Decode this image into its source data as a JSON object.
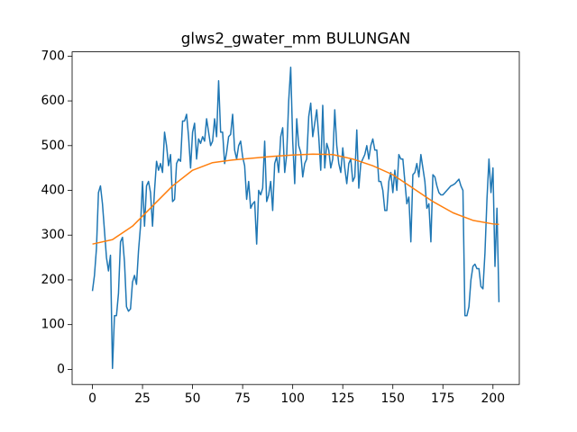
{
  "chart_data": {
    "type": "line",
    "title": "glws2_gwater_mm BULUNGAN",
    "xlim": [
      -10.15,
      213.15
    ],
    "xticks": [
      0,
      25,
      50,
      75,
      100,
      125,
      150,
      175,
      200
    ],
    "ylim": [
      -33.8,
      709.6
    ],
    "yticks": [
      0,
      100,
      200,
      300,
      400,
      500,
      600,
      700
    ],
    "series": [
      {
        "color": "#1f77b4",
        "values": [
          175,
          210,
          270,
          395,
          410,
          370,
          310,
          250,
          220,
          255,
          2,
          120,
          120,
          170,
          285,
          295,
          240,
          140,
          130,
          135,
          195,
          210,
          190,
          265,
          320,
          420,
          320,
          410,
          420,
          395,
          320,
          400,
          465,
          445,
          460,
          440,
          530,
          500,
          455,
          480,
          375,
          380,
          460,
          470,
          465,
          555,
          555,
          570,
          520,
          450,
          530,
          550,
          470,
          515,
          505,
          520,
          510,
          560,
          530,
          500,
          510,
          560,
          520,
          645,
          530,
          530,
          460,
          485,
          520,
          525,
          570,
          490,
          470,
          500,
          510,
          475,
          455,
          380,
          420,
          360,
          370,
          375,
          280,
          400,
          390,
          405,
          510,
          375,
          390,
          420,
          355,
          460,
          475,
          440,
          520,
          540,
          440,
          480,
          600,
          675,
          510,
          415,
          560,
          500,
          485,
          430,
          460,
          470,
          565,
          595,
          520,
          550,
          580,
          520,
          445,
          590,
          450,
          505,
          490,
          450,
          470,
          580,
          500,
          460,
          440,
          495,
          450,
          415,
          460,
          470,
          420,
          430,
          535,
          405,
          460,
          470,
          480,
          500,
          470,
          500,
          515,
          490,
          490,
          420,
          420,
          400,
          355,
          355,
          420,
          440,
          395,
          445,
          400,
          480,
          470,
          470,
          420,
          370,
          385,
          285,
          435,
          440,
          460,
          430,
          480,
          450,
          420,
          360,
          370,
          285,
          435,
          430,
          410,
          395,
          390,
          390,
          395,
          400,
          405,
          410,
          412,
          415,
          420,
          425,
          410,
          400,
          120,
          120,
          140,
          200,
          230,
          235,
          225,
          225,
          185,
          180,
          260,
          380,
          470,
          395,
          450,
          230,
          360,
          150
        ]
      },
      {
        "color": "#ff7f0e",
        "x": [
          0,
          10,
          20,
          30,
          40,
          50,
          60,
          70,
          80,
          90,
          100,
          110,
          120,
          130,
          140,
          150,
          160,
          170,
          180,
          190,
          200,
          203
        ],
        "values": [
          280,
          290,
          320,
          365,
          410,
          445,
          462,
          468,
          472,
          476,
          479,
          481,
          480,
          470,
          455,
          435,
          405,
          375,
          350,
          333,
          325,
          324
        ]
      }
    ]
  }
}
